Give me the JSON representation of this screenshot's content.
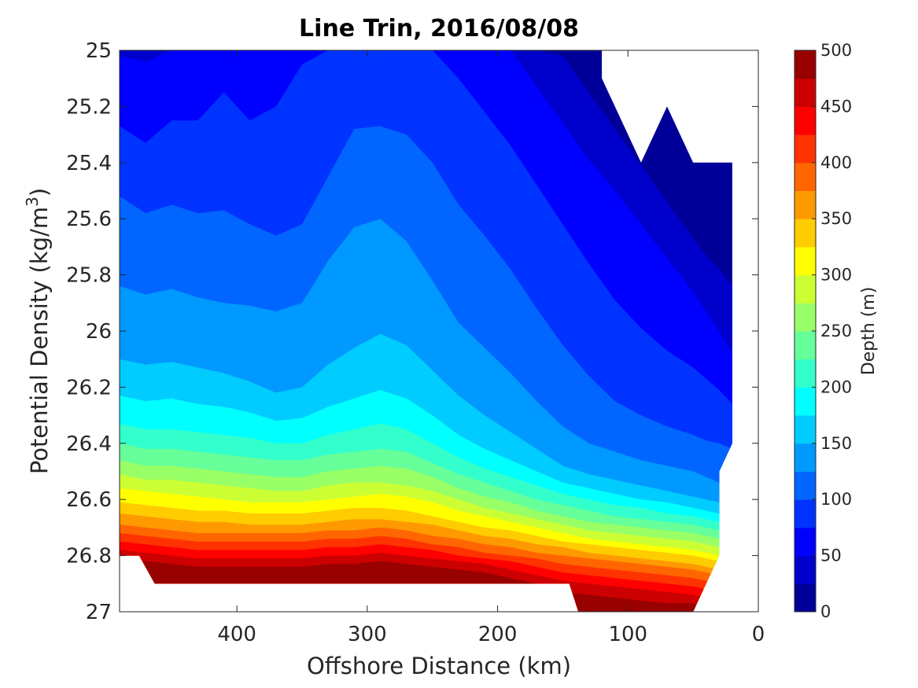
{
  "chart_data": {
    "type": "filled-contour",
    "title": "Line Trin, 2016/08/08",
    "xlabel": "Offshore Distance (km)",
    "ylabel_main": "Potential Density (kg/m",
    "ylabel_sup": "3",
    "ylabel_close": ")",
    "x_axis": {
      "range": [
        490,
        0
      ],
      "reversed": true,
      "ticks": [
        400,
        300,
        200,
        100,
        0
      ],
      "tick_labels": [
        "400",
        "300",
        "200",
        "100",
        "0"
      ]
    },
    "y_axis": {
      "range": [
        25,
        27
      ],
      "reversed": true,
      "ticks": [
        25,
        25.2,
        25.4,
        25.6,
        25.8,
        26,
        26.2,
        26.4,
        26.6,
        26.8,
        27
      ],
      "tick_labels": [
        "25",
        "25.2",
        "25.4",
        "25.6",
        "25.8",
        "26",
        "26.2",
        "26.4",
        "26.6",
        "26.8",
        "27"
      ]
    },
    "colorbar": {
      "label": "Depth (m)",
      "range": [
        0,
        500
      ],
      "ticks": [
        0,
        50,
        100,
        150,
        200,
        250,
        300,
        350,
        400,
        450,
        500
      ],
      "tick_labels": [
        "0",
        "50",
        "100",
        "150",
        "200",
        "250",
        "300",
        "350",
        "400",
        "450",
        "500"
      ],
      "levels": [
        0,
        25,
        50,
        75,
        100,
        125,
        150,
        175,
        200,
        225,
        250,
        275,
        300,
        325,
        350,
        375,
        400,
        425,
        450,
        475,
        500
      ],
      "colormap": "jet"
    },
    "grid": false,
    "section": {
      "x_km": [
        490,
        470,
        450,
        430,
        410,
        390,
        370,
        350,
        330,
        310,
        290,
        270,
        250,
        230,
        210,
        190,
        170,
        150,
        130,
        110,
        90,
        70,
        50,
        40,
        30,
        20
      ],
      "contour_levels": [
        25,
        50,
        75,
        100,
        125,
        150,
        175,
        200,
        225,
        250,
        275,
        300,
        325,
        350,
        375,
        400,
        425,
        450,
        475
      ],
      "isopleth_sigma": [
        [
          25.0,
          25.0,
          25.0,
          25.0,
          25.0,
          25.0,
          25.0,
          25.0,
          25.0,
          25.0,
          25.0,
          25.0,
          25.0,
          25.0,
          25.0,
          25.0,
          25.0,
          25.02,
          25.15,
          25.28,
          25.41,
          25.54,
          25.67,
          25.73,
          25.78,
          25.84
        ],
        [
          25.02,
          25.04,
          25.0,
          25.0,
          25.0,
          25.0,
          25.0,
          25.0,
          25.0,
          25.0,
          25.0,
          25.0,
          25.0,
          25.0,
          25.0,
          25.0,
          25.13,
          25.26,
          25.39,
          25.5,
          25.62,
          25.74,
          25.86,
          25.93,
          26.0,
          26.08
        ],
        [
          25.27,
          25.33,
          25.25,
          25.25,
          25.15,
          25.25,
          25.2,
          25.05,
          25.0,
          25.0,
          25.0,
          25.0,
          25.0,
          25.1,
          25.22,
          25.34,
          25.48,
          25.62,
          25.76,
          25.89,
          25.99,
          26.07,
          26.13,
          26.17,
          26.21,
          26.26
        ],
        [
          25.52,
          25.58,
          25.55,
          25.58,
          25.57,
          25.62,
          25.66,
          25.62,
          25.45,
          25.28,
          25.27,
          25.3,
          25.4,
          25.55,
          25.66,
          25.78,
          25.92,
          26.05,
          26.16,
          26.25,
          26.3,
          26.34,
          26.37,
          26.39,
          26.4,
          26.42
        ],
        [
          25.84,
          25.87,
          25.85,
          25.88,
          25.9,
          25.91,
          25.93,
          25.9,
          25.75,
          25.63,
          25.6,
          25.68,
          25.82,
          25.97,
          26.06,
          26.15,
          26.25,
          26.34,
          26.4,
          26.43,
          26.46,
          26.48,
          26.5,
          26.52,
          26.54,
          26.56
        ],
        [
          26.1,
          26.12,
          26.11,
          26.13,
          26.15,
          26.18,
          26.22,
          26.2,
          26.12,
          26.06,
          26.01,
          26.05,
          26.14,
          26.23,
          26.3,
          26.36,
          26.42,
          26.48,
          26.51,
          26.53,
          26.55,
          26.57,
          26.59,
          26.6,
          26.61,
          26.62
        ],
        [
          26.23,
          26.25,
          26.24,
          26.26,
          26.27,
          26.29,
          26.32,
          26.31,
          26.27,
          26.24,
          26.21,
          26.24,
          26.3,
          26.37,
          26.42,
          26.46,
          26.5,
          26.54,
          26.56,
          26.58,
          26.6,
          26.61,
          26.63,
          26.64,
          26.65,
          26.66
        ],
        [
          26.33,
          26.35,
          26.35,
          26.36,
          26.37,
          26.38,
          26.4,
          26.4,
          26.37,
          26.35,
          26.33,
          26.35,
          26.4,
          26.45,
          26.49,
          26.52,
          26.55,
          26.58,
          26.6,
          26.62,
          26.63,
          26.65,
          26.66,
          26.67,
          26.68,
          26.69
        ],
        [
          26.4,
          26.42,
          26.42,
          26.43,
          26.44,
          26.45,
          26.46,
          26.46,
          26.44,
          26.43,
          26.42,
          26.43,
          26.47,
          26.51,
          26.54,
          26.57,
          26.6,
          26.62,
          26.64,
          26.66,
          26.67,
          26.68,
          26.69,
          26.7,
          26.71,
          26.72
        ],
        [
          26.46,
          26.48,
          26.48,
          26.49,
          26.5,
          26.51,
          26.52,
          26.52,
          26.5,
          26.49,
          26.48,
          26.49,
          26.52,
          26.56,
          26.59,
          26.61,
          26.64,
          26.66,
          26.68,
          26.69,
          26.7,
          26.71,
          26.72,
          26.73,
          26.74,
          26.75
        ],
        [
          26.51,
          26.53,
          26.53,
          26.54,
          26.55,
          26.56,
          26.57,
          26.57,
          26.55,
          26.54,
          26.54,
          26.55,
          26.57,
          26.6,
          26.63,
          26.65,
          26.67,
          26.69,
          26.71,
          26.72,
          26.73,
          26.74,
          26.75,
          26.76,
          26.77,
          26.78
        ],
        [
          26.56,
          26.57,
          26.58,
          26.59,
          26.6,
          26.61,
          26.61,
          26.61,
          26.6,
          26.59,
          26.58,
          26.59,
          26.61,
          26.64,
          26.66,
          26.68,
          26.7,
          26.72,
          26.74,
          26.75,
          26.76,
          26.77,
          26.78,
          26.79,
          26.8,
          26.81
        ],
        [
          26.61,
          26.62,
          26.63,
          26.64,
          26.64,
          26.65,
          26.65,
          26.65,
          26.64,
          26.63,
          26.63,
          26.64,
          26.66,
          26.68,
          26.7,
          26.71,
          26.73,
          26.75,
          26.76,
          26.77,
          26.78,
          26.79,
          26.8,
          26.81,
          26.82,
          26.83
        ],
        [
          26.65,
          26.66,
          26.67,
          26.68,
          26.68,
          26.69,
          26.69,
          26.69,
          26.68,
          26.67,
          26.67,
          26.68,
          26.69,
          26.71,
          26.73,
          26.74,
          26.76,
          26.77,
          26.79,
          26.8,
          26.81,
          26.82,
          26.83,
          26.84,
          26.85,
          26.86
        ],
        [
          26.69,
          26.7,
          26.71,
          26.72,
          26.72,
          26.72,
          26.72,
          26.72,
          26.71,
          26.71,
          26.7,
          26.71,
          26.73,
          26.74,
          26.76,
          26.77,
          26.79,
          26.8,
          26.81,
          26.82,
          26.83,
          26.84,
          26.85,
          26.86,
          26.87,
          26.88
        ],
        [
          26.72,
          26.73,
          26.74,
          26.75,
          26.75,
          26.75,
          26.75,
          26.75,
          26.74,
          26.74,
          26.73,
          26.74,
          26.76,
          26.77,
          26.79,
          26.8,
          26.81,
          26.83,
          26.84,
          26.85,
          26.86,
          26.87,
          26.88,
          26.89,
          26.9,
          26.91
        ],
        [
          26.75,
          26.76,
          26.77,
          26.78,
          26.78,
          26.78,
          26.78,
          26.78,
          26.77,
          26.77,
          26.76,
          26.77,
          26.78,
          26.8,
          26.81,
          26.82,
          26.84,
          26.86,
          26.87,
          26.88,
          26.89,
          26.9,
          26.91,
          26.92,
          26.93,
          26.94
        ],
        [
          26.78,
          26.79,
          26.8,
          26.81,
          26.81,
          26.81,
          26.81,
          26.81,
          26.8,
          26.8,
          26.79,
          26.8,
          26.81,
          26.82,
          26.83,
          26.85,
          26.87,
          26.89,
          26.9,
          26.91,
          26.92,
          26.93,
          26.94,
          26.95,
          26.96,
          26.97
        ],
        [
          26.81,
          26.82,
          26.83,
          26.84,
          26.84,
          26.84,
          26.84,
          26.84,
          26.83,
          26.83,
          26.82,
          26.83,
          26.84,
          26.85,
          26.86,
          26.88,
          26.9,
          26.93,
          26.94,
          26.95,
          26.96,
          26.97,
          26.97,
          26.98,
          26.99,
          27.0
        ]
      ],
      "data_coverage_boundary": [
        [
          490,
          26.8
        ],
        [
          475,
          26.8
        ],
        [
          463,
          26.9
        ],
        [
          145,
          26.9
        ],
        [
          138,
          27.0
        ],
        [
          50,
          27.0
        ],
        [
          30,
          26.8
        ],
        [
          30,
          26.5
        ],
        [
          20,
          26.4
        ],
        [
          20,
          25.4
        ],
        [
          50,
          25.4
        ],
        [
          70,
          25.2
        ],
        [
          90,
          25.4
        ],
        [
          120,
          25.1
        ],
        [
          120,
          25.0
        ],
        [
          490,
          25.0
        ]
      ]
    }
  }
}
